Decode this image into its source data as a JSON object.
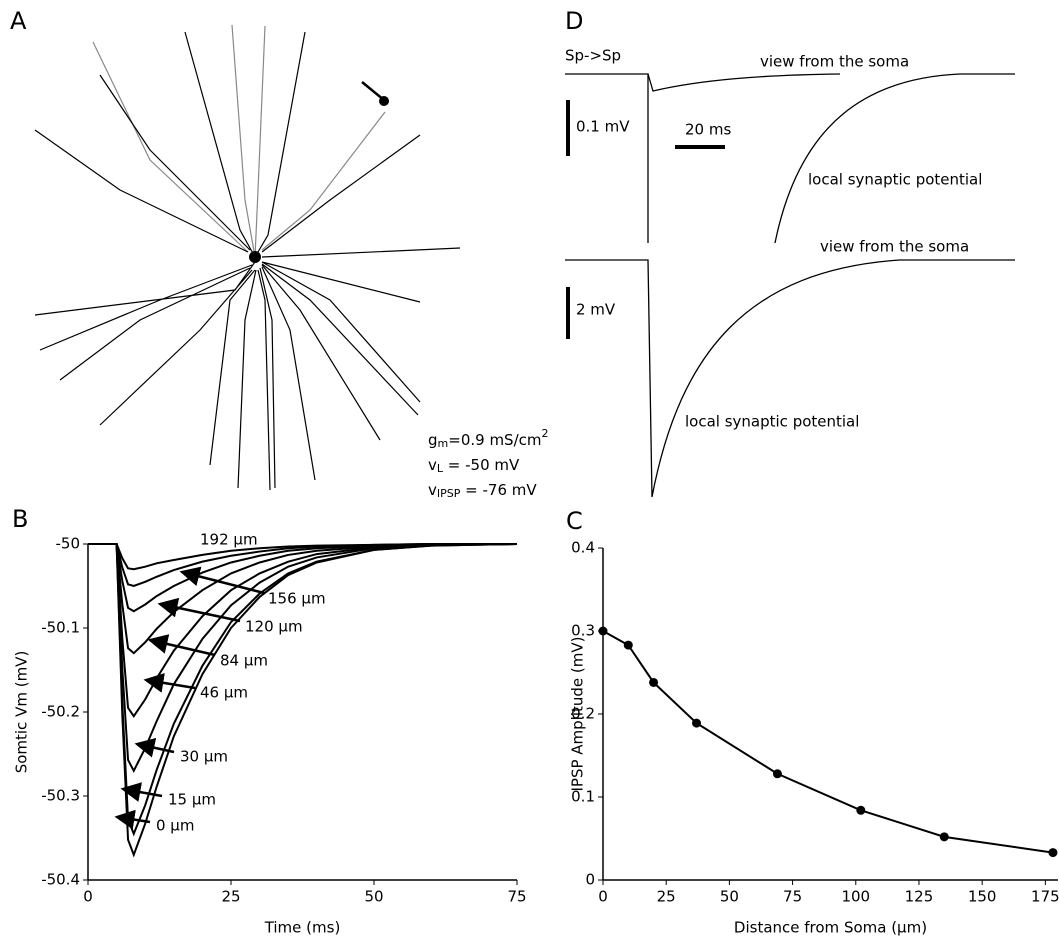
{
  "chart_data": [
    {
      "type": "line",
      "panel_label": "B",
      "xlabel": "Time (ms)",
      "ylabel": "Somtic Vm (mV)",
      "xlim": [
        0,
        75
      ],
      "xticks": [
        0,
        25,
        50,
        75
      ],
      "ylim": [
        -50.4,
        -50
      ],
      "yticks": [
        -50,
        -50.1,
        -50.2,
        -50.3,
        -50.4
      ],
      "x": [
        0,
        5,
        6,
        7,
        8,
        10,
        12,
        15,
        20,
        25,
        30,
        35,
        40,
        50,
        60,
        75
      ],
      "series": [
        {
          "name": "0 µm",
          "color": "#000000",
          "values": [
            -50,
            -50,
            -50.204,
            -50.352,
            -50.37,
            -50.333,
            -50.289,
            -50.229,
            -50.155,
            -50.1,
            -50.063,
            -50.037,
            -50.022,
            -50.007,
            -50.002,
            -50
          ]
        },
        {
          "name": "15 µm",
          "color": "#000000",
          "values": [
            -50,
            -50,
            -50.19,
            -50.328,
            -50.345,
            -50.311,
            -50.269,
            -50.214,
            -50.145,
            -50.093,
            -50.059,
            -50.035,
            -50.021,
            -50.007,
            -50.002,
            -50
          ]
        },
        {
          "name": "30 µm",
          "color": "#000000",
          "values": [
            -50,
            -50,
            -50.149,
            -50.257,
            -50.27,
            -50.243,
            -50.211,
            -50.167,
            -50.113,
            -50.073,
            -50.046,
            -50.027,
            -50.016,
            -50.005,
            -50.001,
            -50
          ]
        },
        {
          "name": "46 µm",
          "color": "#000000",
          "values": [
            -50,
            -50,
            -50.113,
            -50.195,
            -50.205,
            -50.185,
            -50.16,
            -50.127,
            -50.086,
            -50.055,
            -50.035,
            -50.021,
            -50.012,
            -50.004,
            -50.001,
            -50
          ]
        },
        {
          "name": "84 µm",
          "color": "#000000",
          "values": [
            -50,
            -50,
            -50.072,
            -50.124,
            -50.13,
            -50.117,
            -50.101,
            -50.081,
            -50.055,
            -50.035,
            -50.022,
            -50.013,
            -50.008,
            -50.003,
            -50.001,
            -50
          ]
        },
        {
          "name": "120 µm",
          "color": "#000000",
          "values": [
            -50,
            -50,
            -50.044,
            -50.076,
            -50.08,
            -50.072,
            -50.062,
            -50.05,
            -50.034,
            -50.022,
            -50.014,
            -50.008,
            -50.005,
            -50.002,
            -50,
            -50
          ]
        },
        {
          "name": "156 µm",
          "color": "#000000",
          "values": [
            -50,
            -50,
            -50.028,
            -50.048,
            -50.05,
            -50.045,
            -50.039,
            -50.031,
            -50.021,
            -50.014,
            -50.009,
            -50.005,
            -50.003,
            -50.001,
            -50,
            -50
          ]
        },
        {
          "name": "192 µm",
          "color": "#000000",
          "values": [
            -50,
            -50,
            -50.017,
            -50.029,
            -50.03,
            -50.027,
            -50.023,
            -50.019,
            -50.013,
            -50.008,
            -50.005,
            -50.003,
            -50.002,
            -50.001,
            -50,
            -50
          ]
        }
      ]
    },
    {
      "type": "line",
      "panel_label": "C",
      "xlabel": "Distance from Soma (µm)",
      "ylabel": "IPSP Amplitude (mV)",
      "xlim": [
        0,
        180
      ],
      "xticks": [
        0,
        25,
        50,
        75,
        100,
        125,
        150,
        175
      ],
      "ylim": [
        0,
        0.4
      ],
      "yticks": [
        0,
        0.1,
        0.2,
        0.3,
        0.4
      ],
      "x": [
        0,
        10,
        20,
        37,
        69,
        102,
        135,
        178
      ],
      "series": [
        {
          "color": "#000000",
          "values": [
            0.3,
            0.283,
            0.238,
            0.189,
            0.128,
            0.084,
            0.052,
            0.033
          ]
        }
      ]
    }
  ],
  "panel_a": {
    "label": "A",
    "parameters": [
      {
        "symbol": "g",
        "subscript": "m",
        "text": "=0.9 mS/cm",
        "superscript": "2"
      },
      {
        "symbol": "v",
        "subscript": "L",
        "text": " = -50 mV"
      },
      {
        "symbol": "v",
        "subscript": "IPSP",
        "text": " = -76 mV"
      }
    ]
  },
  "panel_d": {
    "label": "D",
    "title": "Sp->Sp",
    "top": {
      "soma_label": "view from the soma",
      "local_label": "local synaptic potential",
      "voltage_scale": "0.1 mV",
      "time_scale": "20 ms"
    },
    "bottom": {
      "soma_label": "view from the soma",
      "local_label": "local synaptic potential",
      "voltage_scale": "2 mV"
    }
  }
}
